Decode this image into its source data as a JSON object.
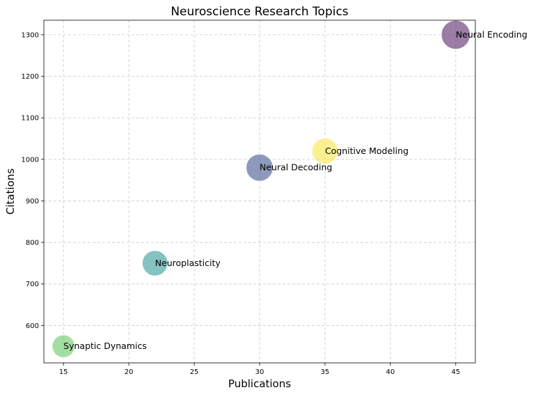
{
  "chart_data": {
    "type": "scatter",
    "title": "Neuroscience Research Topics",
    "xlabel": "Publications",
    "ylabel": "Citations",
    "xlim": [
      13.5,
      46.5
    ],
    "ylim": [
      510,
      1335
    ],
    "xticks": [
      15,
      20,
      25,
      30,
      35,
      40,
      45
    ],
    "yticks": [
      600,
      700,
      800,
      900,
      1000,
      1100,
      1200,
      1300
    ],
    "grid": true,
    "points": [
      {
        "label": "Neural Encoding",
        "x": 45,
        "y": 1300,
        "size": 1.0,
        "color": "#5e2d6e"
      },
      {
        "label": "Cognitive Modeling",
        "x": 35,
        "y": 1020,
        "size": 0.82,
        "color": "#f8e84f"
      },
      {
        "label": "Neural Decoding",
        "x": 30,
        "y": 980,
        "size": 0.88,
        "color": "#4a5a92"
      },
      {
        "label": "Neuroplasticity",
        "x": 22,
        "y": 750,
        "size": 0.78,
        "color": "#3a9e9a"
      },
      {
        "label": "Synaptic Dynamics",
        "x": 15,
        "y": 550,
        "size": 0.62,
        "color": "#6ac96a"
      }
    ]
  }
}
